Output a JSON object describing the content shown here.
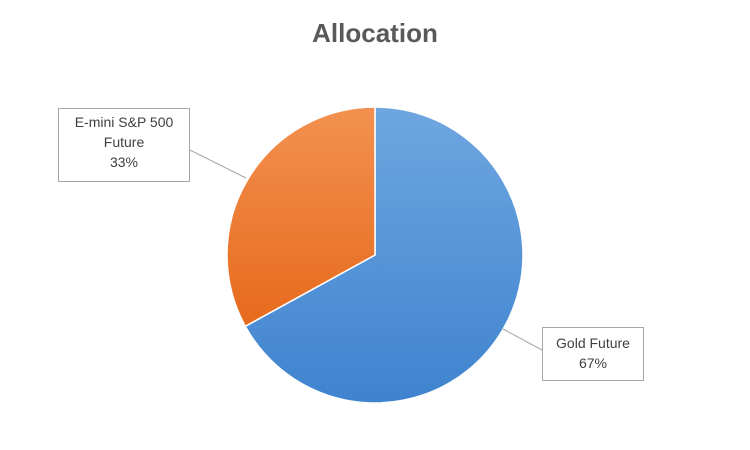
{
  "chart_data": {
    "type": "pie",
    "title": "Allocation",
    "categories": [
      "Gold Future",
      "E-mini S&P 500 Future"
    ],
    "values": [
      67,
      33
    ],
    "slices": [
      {
        "label_lines": [
          "Gold Future"
        ],
        "percent_label": "67%",
        "value": 67,
        "color": "#4a8dd6",
        "gradient": [
          "#6ea6e0",
          "#3f83cf"
        ]
      },
      {
        "label_lines": [
          "E-mini S&P 500",
          "Future"
        ],
        "percent_label": "33%",
        "value": 33,
        "color": "#ed7d31",
        "gradient": [
          "#f39150",
          "#e66a1c"
        ]
      }
    ],
    "legend": "none"
  }
}
